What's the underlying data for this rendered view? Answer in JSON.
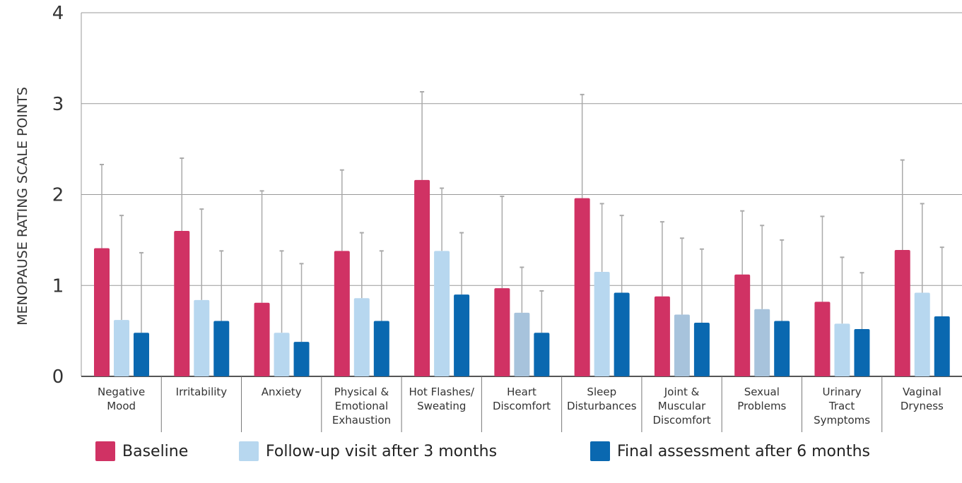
{
  "chart_data": {
    "type": "bar",
    "ylabel": "MENOPAUSE RATING SCALE POINTS",
    "xlabel": "",
    "ylim": [
      0,
      4
    ],
    "yticks": [
      0,
      1,
      2,
      3,
      4
    ],
    "grid": true,
    "legend_placement": "bottom",
    "categories": [
      [
        "Negative",
        "Mood"
      ],
      [
        "Irritability"
      ],
      [
        "Anxiety"
      ],
      [
        "Physical &",
        "Emotional",
        "Exhaustion"
      ],
      [
        "Hot Flashes/",
        "Sweating"
      ],
      [
        "Heart",
        "Discomfort"
      ],
      [
        "Sleep",
        "Disturbances"
      ],
      [
        "Joint &",
        "Muscular",
        "Discomfort"
      ],
      [
        "Sexual",
        "Problems"
      ],
      [
        "Urinary",
        "Tract",
        "Symptoms"
      ],
      [
        "Vaginal",
        "Dryness"
      ]
    ],
    "series": [
      {
        "name": "Baseline",
        "color": "#d03264",
        "values": [
          1.41,
          1.6,
          0.81,
          1.38,
          2.16,
          0.97,
          1.96,
          0.88,
          1.12,
          0.82,
          1.39
        ],
        "errors": [
          2.33,
          2.4,
          2.04,
          2.27,
          3.13,
          1.98,
          3.1,
          1.7,
          1.82,
          1.76,
          2.38
        ]
      },
      {
        "name": "Follow-up visit after 3 months",
        "color": "#b7d7ef",
        "colors_alt": "#a7c3dc",
        "values": [
          0.62,
          0.84,
          0.48,
          0.86,
          1.38,
          0.7,
          1.15,
          0.68,
          0.74,
          0.58,
          0.92
        ],
        "errors": [
          1.77,
          1.84,
          1.38,
          1.58,
          2.07,
          1.2,
          1.9,
          1.52,
          1.66,
          1.31,
          1.9
        ]
      },
      {
        "name": "Final assessment after 6 months",
        "color": "#0a68b0",
        "values": [
          0.48,
          0.61,
          0.38,
          0.61,
          0.9,
          0.48,
          0.92,
          0.59,
          0.61,
          0.52,
          0.66
        ],
        "errors": [
          1.36,
          1.38,
          1.24,
          1.38,
          1.58,
          0.94,
          1.77,
          1.4,
          1.5,
          1.14,
          1.42
        ]
      }
    ]
  },
  "legend": [
    {
      "label": "Baseline",
      "color": "#d03264"
    },
    {
      "label": "Follow-up visit after 3 months",
      "color": "#b7d7ef"
    },
    {
      "label": "Final assessment after 6 months",
      "color": "#0a68b0"
    }
  ],
  "colors": {
    "grid": "#999999",
    "error_bar": "#aaaaaa",
    "axis": "#555555"
  }
}
